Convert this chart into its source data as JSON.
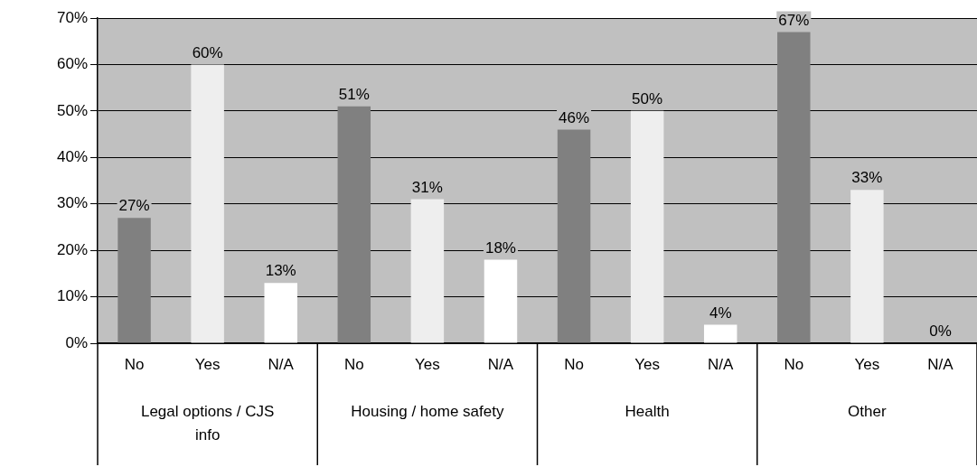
{
  "chart_data": {
    "type": "bar",
    "categories": [
      "No",
      "Yes",
      "N/A",
      "No",
      "Yes",
      "N/A",
      "No",
      "Yes",
      "N/A",
      "No",
      "Yes",
      "N/A"
    ],
    "values": [
      27,
      60,
      13,
      51,
      31,
      18,
      46,
      50,
      4,
      67,
      33,
      0
    ],
    "value_labels": [
      "27%",
      "60%",
      "13%",
      "51%",
      "31%",
      "18%",
      "46%",
      "50%",
      "4%",
      "67%",
      "33%",
      "0%"
    ],
    "colors": [
      "#808080",
      "#eeeeee",
      "#ffffff",
      "#808080",
      "#eeeeee",
      "#ffffff",
      "#808080",
      "#eeeeee",
      "#ffffff",
      "#808080",
      "#eeeeee",
      "#ffffff"
    ],
    "ylim": [
      0,
      70
    ],
    "yticks": [
      {
        "value": 0,
        "label": "0%"
      },
      {
        "value": 10,
        "label": "10%"
      },
      {
        "value": 20,
        "label": "20%"
      },
      {
        "value": 30,
        "label": "30%"
      },
      {
        "value": 40,
        "label": "40%"
      },
      {
        "value": 50,
        "label": "50%"
      },
      {
        "value": 60,
        "label": "60%"
      },
      {
        "value": 70,
        "label": "70%"
      }
    ],
    "grid": "y",
    "legend": false,
    "annotations": [
      "Legal options / CJS\ninfo",
      "Housing / home safety",
      "Health",
      "Other"
    ]
  }
}
